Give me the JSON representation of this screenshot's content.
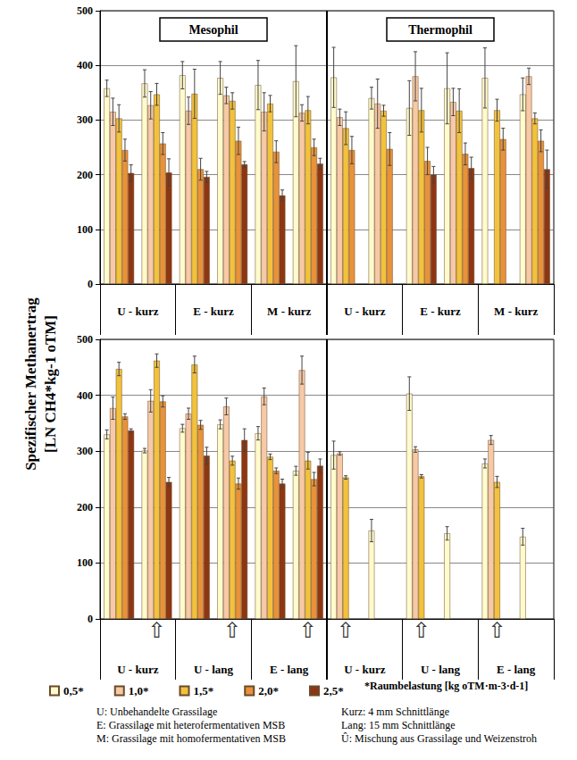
{
  "chart_data": [
    {
      "type": "bar",
      "panel_labels": [
        "Mesophil",
        "Thermophil"
      ],
      "y_label": [
        "Spezifischer Methanertrag",
        "[LN CH4*kg-1 oTM]"
      ],
      "categories": [
        null,
        null,
        null,
        null,
        null,
        null,
        null,
        null,
        null,
        null,
        null,
        null
      ],
      "group_labels": [
        "U - kurz",
        "E - kurz",
        "M - kurz",
        "U - kurz",
        "E - kurz",
        "M - kurz"
      ],
      "ylim": [
        0,
        500
      ],
      "yticks": [
        0,
        100,
        200,
        300,
        400,
        500
      ],
      "grid": true,
      "series": [
        {
          "name": "0,5*",
          "color": "#FFFBCC",
          "values": [
            358,
            367,
            382,
            377,
            364,
            371,
            378,
            340,
            322,
            358,
            377,
            347
          ],
          "errors": [
            15,
            25,
            25,
            30,
            45,
            65,
            55,
            20,
            50,
            65,
            55,
            30
          ]
        },
        {
          "name": "1,0*",
          "color": "#F7C9A6",
          "values": [
            315,
            327,
            317,
            345,
            315,
            313,
            305,
            330,
            380,
            333,
            null,
            380
          ],
          "errors": [
            25,
            25,
            25,
            15,
            35,
            15,
            15,
            45,
            45,
            25,
            null,
            15
          ]
        },
        {
          "name": "1,5*",
          "color": "#F2C23C",
          "values": [
            303,
            347,
            348,
            335,
            330,
            318,
            285,
            317,
            318,
            317,
            318,
            303
          ],
          "errors": [
            25,
            20,
            45,
            15,
            15,
            25,
            30,
            10,
            40,
            40,
            20,
            10
          ]
        },
        {
          "name": "2,0*",
          "color": "#E8923A",
          "values": [
            245,
            257,
            210,
            262,
            242,
            250,
            245,
            247,
            225,
            238,
            265,
            262
          ],
          "errors": [
            20,
            20,
            20,
            25,
            20,
            15,
            25,
            30,
            25,
            20,
            20,
            20
          ]
        },
        {
          "name": "2,5*",
          "color": "#8E3612",
          "values": [
            203,
            204,
            196,
            219,
            162,
            220,
            null,
            null,
            200,
            212,
            null,
            210
          ],
          "errors": [
            15,
            25,
            10,
            5,
            10,
            10,
            null,
            null,
            15,
            20,
            null,
            35
          ]
        }
      ]
    },
    {
      "type": "bar",
      "categories": [
        null,
        "⇧",
        null,
        "⇧",
        null,
        "⇧",
        "⇧",
        null,
        "⇧",
        null,
        "⇧",
        null
      ],
      "group_labels": [
        "U - kurz",
        "U - lang",
        "E - lang",
        "U - kurz",
        "U - lang",
        "E - lang"
      ],
      "ylim": [
        0,
        500
      ],
      "yticks": [
        0,
        100,
        200,
        300,
        400,
        500
      ],
      "grid": true,
      "legend": "bottom",
      "legend_note": "*Raumbelastung [kg oTM·m-3·d-1]",
      "notes": [
        [
          "U: Unbehandelte Grassilage",
          "Kurz: 4 mm Schnittlänge"
        ],
        [
          "E: Grassilage mit heterofermentativen MSB",
          "Lang: 15 mm Schnittlänge"
        ],
        [
          "M: Grassilage mit homofermentativen MSB",
          "Û: Mischung aus Grassilage und Weizenstroh"
        ]
      ],
      "series": [
        {
          "name": "0,5*",
          "color": "#FFFBCC",
          "values": [
            330,
            301,
            341,
            348,
            332,
            265,
            293,
            158,
            403,
            153,
            278,
            147
          ],
          "errors": [
            8,
            4,
            7,
            8,
            12,
            8,
            25,
            20,
            30,
            12,
            8,
            15
          ]
        },
        {
          "name": "1,0*",
          "color": "#F7C9A6",
          "values": [
            377,
            390,
            367,
            380,
            398,
            445,
            296,
            null,
            303,
            null,
            320,
            null
          ],
          "errors": [
            20,
            20,
            10,
            15,
            15,
            25,
            3,
            null,
            5,
            null,
            8,
            null
          ]
        },
        {
          "name": "1,5*",
          "color": "#F2C23C",
          "values": [
            447,
            462,
            455,
            283,
            290,
            283,
            253,
            null,
            255,
            null,
            245,
            null
          ],
          "errors": [
            12,
            12,
            15,
            8,
            5,
            15,
            3,
            null,
            3,
            null,
            10,
            null
          ]
        },
        {
          "name": "2,0*",
          "color": "#E8923A",
          "values": [
            362,
            389,
            347,
            242,
            265,
            250,
            null,
            null,
            null,
            null,
            null,
            null
          ],
          "errors": [
            5,
            10,
            8,
            10,
            5,
            12,
            null,
            null,
            null,
            null,
            null,
            null
          ]
        },
        {
          "name": "2,5*",
          "color": "#8E3612",
          "values": [
            337,
            245,
            292,
            320,
            242,
            274,
            null,
            null,
            null,
            null,
            null,
            null
          ],
          "errors": [
            3,
            8,
            15,
            20,
            8,
            12,
            null,
            null,
            null,
            null,
            null,
            null
          ]
        }
      ]
    }
  ]
}
